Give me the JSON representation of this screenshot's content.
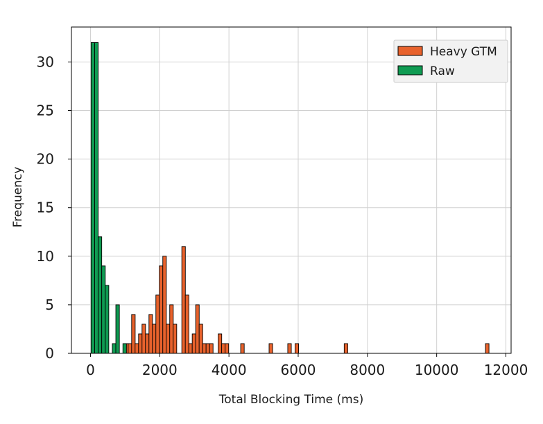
{
  "chart_data": {
    "type": "bar",
    "title": "",
    "xlabel": "Total Blocking Time (ms)",
    "ylabel": "Frequency",
    "xlim": [
      -550,
      12150
    ],
    "ylim": [
      0,
      33.6
    ],
    "xticks": [
      0,
      2000,
      4000,
      6000,
      8000,
      10000,
      12000
    ],
    "yticks": [
      0,
      5,
      10,
      15,
      20,
      25,
      30
    ],
    "grid": true,
    "legend_position": "top-right",
    "bin_width": 102,
    "series": [
      {
        "name": "Heavy GTM",
        "color": "#e8622c",
        "bins": [
          {
            "x": 1040,
            "count": 1
          },
          {
            "x": 1140,
            "count": 1
          },
          {
            "x": 1240,
            "count": 4
          },
          {
            "x": 1340,
            "count": 1
          },
          {
            "x": 1440,
            "count": 2
          },
          {
            "x": 1540,
            "count": 3
          },
          {
            "x": 1640,
            "count": 2
          },
          {
            "x": 1740,
            "count": 4
          },
          {
            "x": 1840,
            "count": 3
          },
          {
            "x": 1940,
            "count": 6
          },
          {
            "x": 2040,
            "count": 9
          },
          {
            "x": 2140,
            "count": 10
          },
          {
            "x": 2240,
            "count": 3
          },
          {
            "x": 2340,
            "count": 5
          },
          {
            "x": 2440,
            "count": 3
          },
          {
            "x": 2690,
            "count": 11
          },
          {
            "x": 2790,
            "count": 6
          },
          {
            "x": 2890,
            "count": 1
          },
          {
            "x": 2990,
            "count": 2
          },
          {
            "x": 3090,
            "count": 5
          },
          {
            "x": 3190,
            "count": 3
          },
          {
            "x": 3290,
            "count": 1
          },
          {
            "x": 3390,
            "count": 1
          },
          {
            "x": 3490,
            "count": 1
          },
          {
            "x": 3740,
            "count": 2
          },
          {
            "x": 3840,
            "count": 1
          },
          {
            "x": 3940,
            "count": 1
          },
          {
            "x": 4390,
            "count": 1
          },
          {
            "x": 5210,
            "count": 1
          },
          {
            "x": 5750,
            "count": 1
          },
          {
            "x": 5960,
            "count": 1
          },
          {
            "x": 7380,
            "count": 1
          },
          {
            "x": 11460,
            "count": 1
          }
        ]
      },
      {
        "name": "Raw",
        "color": "#0f9b52",
        "bins": [
          {
            "x": 70,
            "count": 32
          },
          {
            "x": 172,
            "count": 32
          },
          {
            "x": 274,
            "count": 12
          },
          {
            "x": 376,
            "count": 9
          },
          {
            "x": 478,
            "count": 7
          },
          {
            "x": 682,
            "count": 1
          },
          {
            "x": 784,
            "count": 5
          },
          {
            "x": 988,
            "count": 1
          }
        ]
      }
    ]
  }
}
